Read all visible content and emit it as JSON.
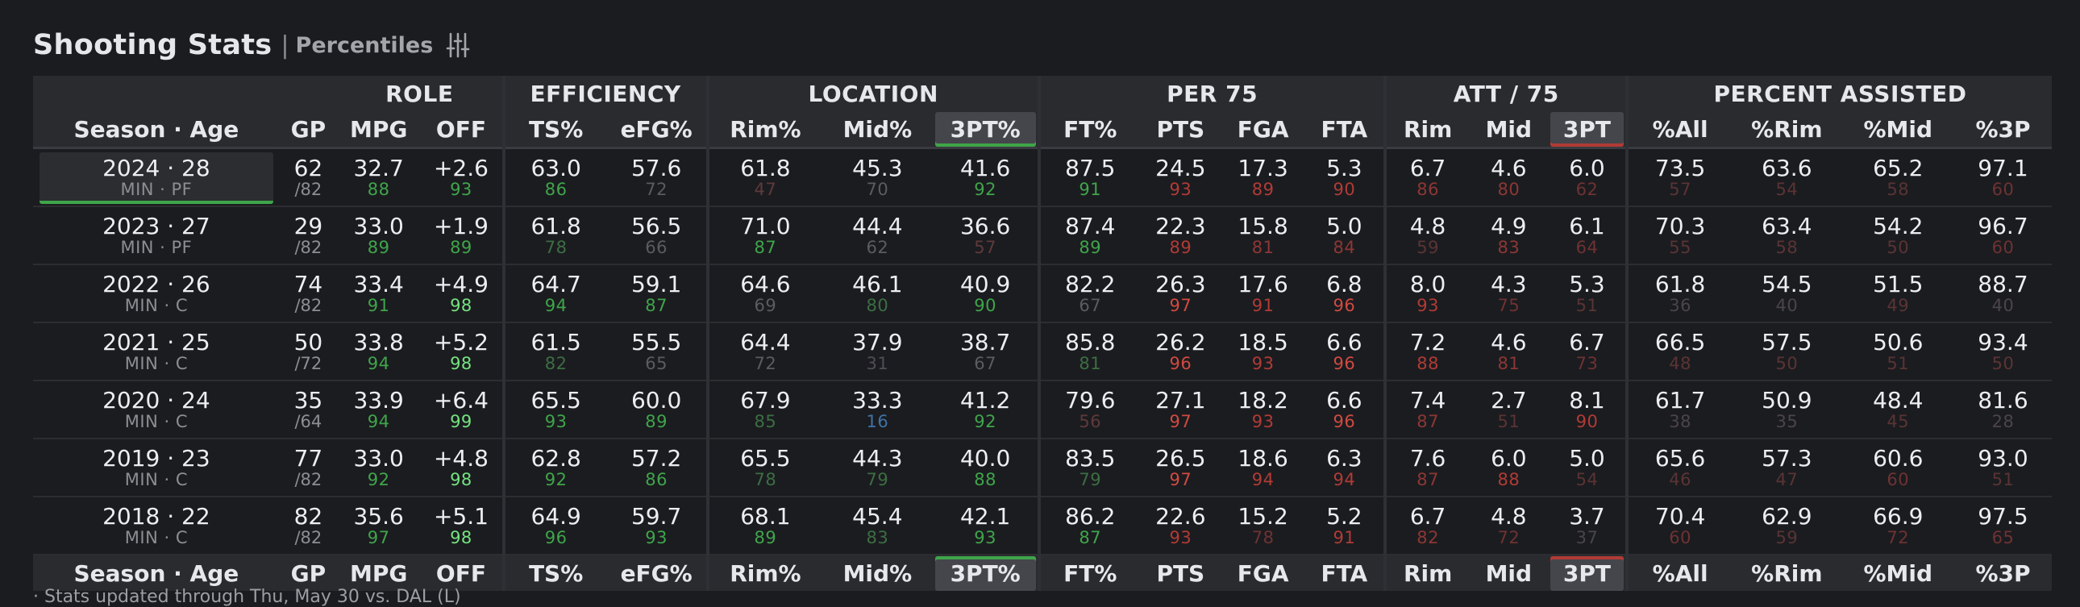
{
  "header": {
    "title": "Shooting Stats",
    "separator": "|",
    "subtitle": "Percentiles",
    "filter_icon": "sliders-icon"
  },
  "colors": {
    "pct_low_red": "#6e2c2b",
    "pct_red": "#b13b35",
    "pct_mid": "#5b5d61",
    "pct_blue": "#3e6fa0",
    "pct_green": "#3f9d48",
    "pct_bright_green": "#6fe07a",
    "highlight_green": "#3fa54a",
    "highlight_red": "#b13b35"
  },
  "group_headers": [
    "ROLE",
    "EFFICIENCY",
    "LOCATION",
    "PER 75",
    "ATT / 75",
    "PERCENT ASSISTED"
  ],
  "columns": [
    "Season · Age",
    "GP",
    "MPG",
    "OFF",
    "TS%",
    "eFG%",
    "Rim%",
    "Mid%",
    "3PT%",
    "FT%",
    "PTS",
    "FGA",
    "FTA",
    "Rim",
    "Mid",
    "3PT",
    "%All",
    "%Rim",
    "%Mid",
    "%3P"
  ],
  "highlighted_columns": {
    "3PT%": "green",
    "3PT": "red"
  },
  "rows": [
    {
      "season": "2024 · 28",
      "pos": "MIN · PF",
      "selected": true,
      "gp": "62",
      "gp_total": "/82",
      "cells": [
        [
          "32.7",
          "88"
        ],
        [
          "+2.6",
          "93"
        ],
        [
          "63.0",
          "86"
        ],
        [
          "57.6",
          "72"
        ],
        [
          "61.8",
          "47"
        ],
        [
          "45.3",
          "70"
        ],
        [
          "41.6",
          "92"
        ],
        [
          "87.5",
          "91"
        ],
        [
          "24.5",
          "93"
        ],
        [
          "17.3",
          "89"
        ],
        [
          "5.3",
          "90"
        ],
        [
          "6.7",
          "86"
        ],
        [
          "4.6",
          "80"
        ],
        [
          "6.0",
          "62"
        ],
        [
          "73.5",
          "57"
        ],
        [
          "63.6",
          "54"
        ],
        [
          "65.2",
          "58"
        ],
        [
          "97.1",
          "60"
        ]
      ]
    },
    {
      "season": "2023 · 27",
      "pos": "MIN · PF",
      "selected": false,
      "gp": "29",
      "gp_total": "/82",
      "cells": [
        [
          "33.0",
          "89"
        ],
        [
          "+1.9",
          "89"
        ],
        [
          "61.8",
          "78"
        ],
        [
          "56.5",
          "66"
        ],
        [
          "71.0",
          "87"
        ],
        [
          "44.4",
          "62"
        ],
        [
          "36.6",
          "57"
        ],
        [
          "87.4",
          "89"
        ],
        [
          "22.3",
          "89"
        ],
        [
          "15.8",
          "81"
        ],
        [
          "5.0",
          "84"
        ],
        [
          "4.8",
          "59"
        ],
        [
          "4.9",
          "83"
        ],
        [
          "6.1",
          "64"
        ],
        [
          "70.3",
          "55"
        ],
        [
          "63.4",
          "58"
        ],
        [
          "54.2",
          "50"
        ],
        [
          "96.7",
          "60"
        ]
      ]
    },
    {
      "season": "2022 · 26",
      "pos": "MIN · C",
      "selected": false,
      "gp": "74",
      "gp_total": "/82",
      "cells": [
        [
          "33.4",
          "91"
        ],
        [
          "+4.9",
          "98"
        ],
        [
          "64.7",
          "94"
        ],
        [
          "59.1",
          "87"
        ],
        [
          "64.6",
          "69"
        ],
        [
          "46.1",
          "80"
        ],
        [
          "40.9",
          "90"
        ],
        [
          "82.2",
          "67"
        ],
        [
          "26.3",
          "97"
        ],
        [
          "17.6",
          "91"
        ],
        [
          "6.8",
          "96"
        ],
        [
          "8.0",
          "93"
        ],
        [
          "4.3",
          "75"
        ],
        [
          "5.3",
          "51"
        ],
        [
          "61.8",
          "36"
        ],
        [
          "54.5",
          "40"
        ],
        [
          "51.5",
          "49"
        ],
        [
          "88.7",
          "40"
        ]
      ]
    },
    {
      "season": "2021 · 25",
      "pos": "MIN · C",
      "selected": false,
      "gp": "50",
      "gp_total": "/72",
      "cells": [
        [
          "33.8",
          "94"
        ],
        [
          "+5.2",
          "98"
        ],
        [
          "61.5",
          "82"
        ],
        [
          "55.5",
          "65"
        ],
        [
          "64.4",
          "72"
        ],
        [
          "37.9",
          "31"
        ],
        [
          "38.7",
          "67"
        ],
        [
          "85.8",
          "81"
        ],
        [
          "26.2",
          "96"
        ],
        [
          "18.5",
          "93"
        ],
        [
          "6.6",
          "96"
        ],
        [
          "7.2",
          "88"
        ],
        [
          "4.6",
          "81"
        ],
        [
          "6.7",
          "73"
        ],
        [
          "66.5",
          "48"
        ],
        [
          "57.5",
          "50"
        ],
        [
          "50.6",
          "51"
        ],
        [
          "93.4",
          "50"
        ]
      ]
    },
    {
      "season": "2020 · 24",
      "pos": "MIN · C",
      "selected": false,
      "gp": "35",
      "gp_total": "/64",
      "cells": [
        [
          "33.9",
          "94"
        ],
        [
          "+6.4",
          "99"
        ],
        [
          "65.5",
          "93"
        ],
        [
          "60.0",
          "89"
        ],
        [
          "67.9",
          "85"
        ],
        [
          "33.3",
          "16"
        ],
        [
          "41.2",
          "92"
        ],
        [
          "79.6",
          "56"
        ],
        [
          "27.1",
          "97"
        ],
        [
          "18.2",
          "93"
        ],
        [
          "6.6",
          "96"
        ],
        [
          "7.4",
          "87"
        ],
        [
          "2.7",
          "51"
        ],
        [
          "8.1",
          "90"
        ],
        [
          "61.7",
          "38"
        ],
        [
          "50.9",
          "35"
        ],
        [
          "48.4",
          "45"
        ],
        [
          "81.6",
          "28"
        ]
      ]
    },
    {
      "season": "2019 · 23",
      "pos": "MIN · C",
      "selected": false,
      "gp": "77",
      "gp_total": "/82",
      "cells": [
        [
          "33.0",
          "92"
        ],
        [
          "+4.8",
          "98"
        ],
        [
          "62.8",
          "92"
        ],
        [
          "57.2",
          "86"
        ],
        [
          "65.5",
          "78"
        ],
        [
          "44.3",
          "79"
        ],
        [
          "40.0",
          "88"
        ],
        [
          "83.5",
          "79"
        ],
        [
          "26.5",
          "97"
        ],
        [
          "18.6",
          "94"
        ],
        [
          "6.3",
          "94"
        ],
        [
          "7.6",
          "87"
        ],
        [
          "6.0",
          "88"
        ],
        [
          "5.0",
          "54"
        ],
        [
          "65.6",
          "46"
        ],
        [
          "57.3",
          "47"
        ],
        [
          "60.6",
          "60"
        ],
        [
          "93.0",
          "51"
        ]
      ]
    },
    {
      "season": "2018 · 22",
      "pos": "MIN · C",
      "selected": false,
      "gp": "82",
      "gp_total": "/82",
      "cells": [
        [
          "35.6",
          "97"
        ],
        [
          "+5.1",
          "98"
        ],
        [
          "64.9",
          "96"
        ],
        [
          "59.7",
          "93"
        ],
        [
          "68.1",
          "89"
        ],
        [
          "45.4",
          "83"
        ],
        [
          "42.1",
          "93"
        ],
        [
          "86.2",
          "87"
        ],
        [
          "22.6",
          "93"
        ],
        [
          "15.2",
          "78"
        ],
        [
          "5.2",
          "91"
        ],
        [
          "6.7",
          "82"
        ],
        [
          "4.8",
          "72"
        ],
        [
          "3.7",
          "37"
        ],
        [
          "70.4",
          "60"
        ],
        [
          "62.9",
          "59"
        ],
        [
          "66.9",
          "72"
        ],
        [
          "97.5",
          "65"
        ]
      ]
    }
  ],
  "footnote": "· Stats updated through Thu, May 30 vs. DAL (L)"
}
